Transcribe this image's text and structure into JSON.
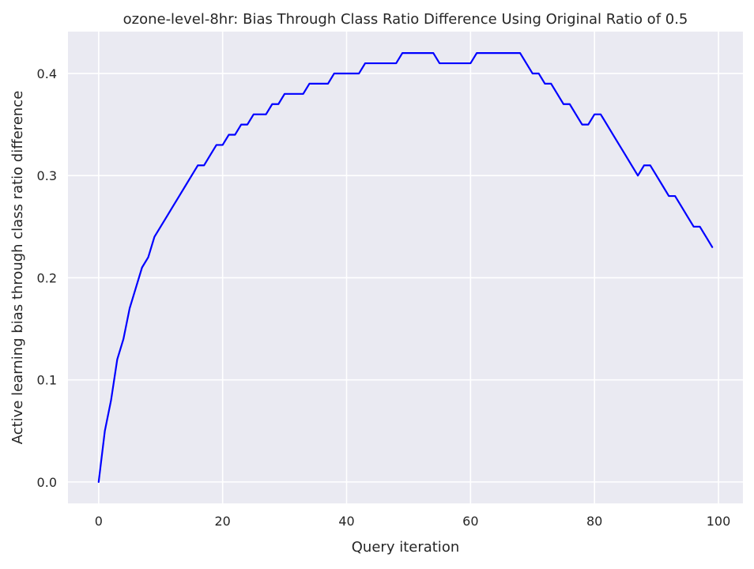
{
  "chart_data": {
    "type": "line",
    "title": "ozone-level-8hr: Bias Through Class Ratio Difference Using Original Ratio of 0.5",
    "xlabel": "Query iteration",
    "ylabel": "Active learning bias through class ratio difference",
    "xlim": [
      -4.95,
      103.95
    ],
    "ylim": [
      -0.021,
      0.441
    ],
    "xticks": [
      0,
      20,
      40,
      60,
      80,
      100
    ],
    "xtick_labels": [
      "0",
      "20",
      "40",
      "60",
      "80",
      "100"
    ],
    "yticks": [
      0.0,
      0.1,
      0.2,
      0.3,
      0.4
    ],
    "ytick_labels": [
      "0.0",
      "0.1",
      "0.2",
      "0.3",
      "0.4"
    ],
    "grid": true,
    "style": "seaborn-darkgrid",
    "colors": {
      "background": "#eaeaf2",
      "grid": "#ffffff",
      "line": "#0000ff"
    },
    "series": [
      {
        "x": [
          0,
          1,
          2,
          3,
          4,
          5,
          6,
          7,
          8,
          9,
          10,
          11,
          12,
          13,
          14,
          15,
          16,
          17,
          18,
          19,
          20,
          21,
          22,
          23,
          24,
          25,
          26,
          27,
          28,
          29,
          30,
          31,
          32,
          33,
          34,
          35,
          36,
          37,
          38,
          39,
          40,
          41,
          42,
          43,
          44,
          45,
          46,
          47,
          48,
          49,
          50,
          51,
          52,
          53,
          54,
          55,
          56,
          57,
          58,
          59,
          60,
          61,
          62,
          63,
          64,
          65,
          66,
          67,
          68,
          69,
          70,
          71,
          72,
          73,
          74,
          75,
          76,
          77,
          78,
          79,
          80,
          81,
          82,
          83,
          84,
          85,
          86,
          87,
          88,
          89,
          90,
          91,
          92,
          93,
          94,
          95,
          96,
          97,
          98,
          99
        ],
        "values": [
          0.0,
          0.05,
          0.08,
          0.12,
          0.14,
          0.17,
          0.19,
          0.21,
          0.22,
          0.24,
          0.25,
          0.26,
          0.27,
          0.28,
          0.29,
          0.3,
          0.31,
          0.31,
          0.32,
          0.33,
          0.33,
          0.34,
          0.34,
          0.35,
          0.35,
          0.36,
          0.36,
          0.36,
          0.37,
          0.37,
          0.38,
          0.38,
          0.38,
          0.38,
          0.39,
          0.39,
          0.39,
          0.39,
          0.4,
          0.4,
          0.4,
          0.4,
          0.4,
          0.41,
          0.41,
          0.41,
          0.41,
          0.41,
          0.41,
          0.42,
          0.42,
          0.42,
          0.42,
          0.42,
          0.42,
          0.41,
          0.41,
          0.41,
          0.41,
          0.41,
          0.41,
          0.42,
          0.42,
          0.42,
          0.42,
          0.42,
          0.42,
          0.42,
          0.42,
          0.41,
          0.4,
          0.4,
          0.39,
          0.39,
          0.38,
          0.37,
          0.37,
          0.36,
          0.35,
          0.35,
          0.36,
          0.36,
          0.35,
          0.34,
          0.33,
          0.32,
          0.31,
          0.3,
          0.31,
          0.31,
          0.3,
          0.29,
          0.28,
          0.28,
          0.27,
          0.26,
          0.25,
          0.25,
          0.24,
          0.23
        ]
      }
    ]
  }
}
